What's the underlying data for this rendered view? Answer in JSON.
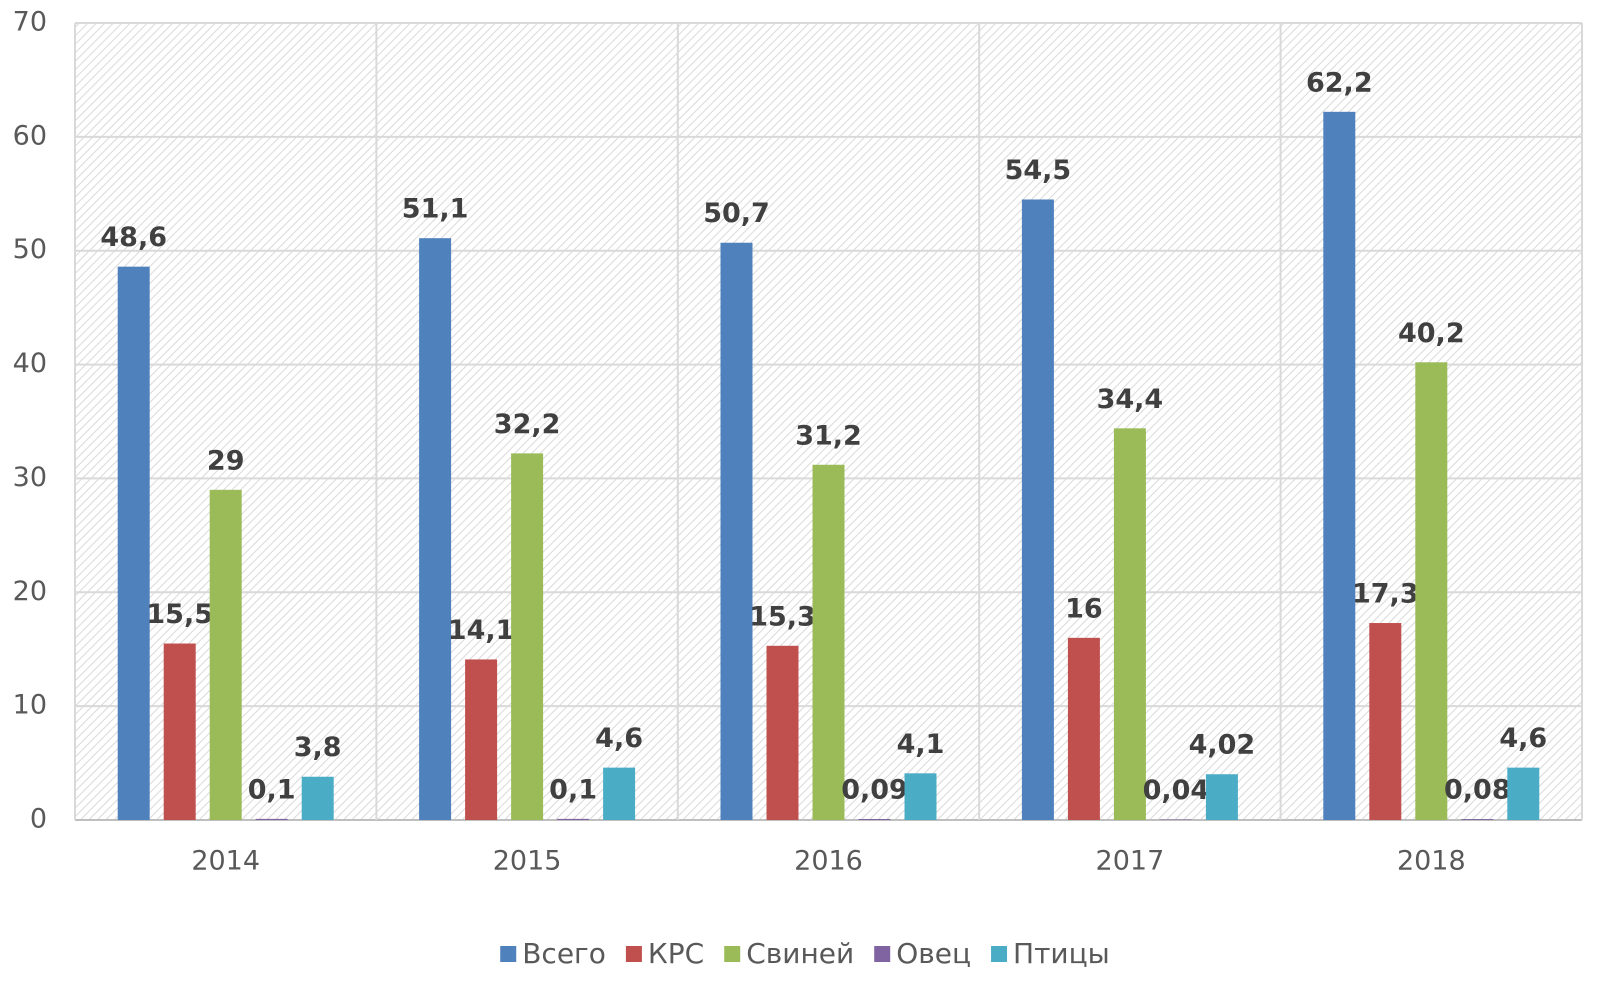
{
  "chart_data": {
    "type": "bar",
    "categories": [
      "2014",
      "2015",
      "2016",
      "2017",
      "2018"
    ],
    "series": [
      {
        "name": "Всего",
        "color": "#4f81bd",
        "values": [
          48.6,
          51.1,
          50.7,
          54.5,
          62.2
        ],
        "value_labels": [
          "48,6",
          "51,1",
          "50,7",
          "54,5",
          "62,2"
        ]
      },
      {
        "name": "КРС",
        "color": "#c0504d",
        "values": [
          15.5,
          14.1,
          15.3,
          16,
          17.3
        ],
        "value_labels": [
          "15,5",
          "14,1",
          "15,3",
          "16",
          "17,3"
        ]
      },
      {
        "name": "Свиней",
        "color": "#9bbb59",
        "values": [
          29,
          32.2,
          31.2,
          34.4,
          40.2
        ],
        "value_labels": [
          "29",
          "32,2",
          "31,2",
          "34,4",
          "40,2"
        ]
      },
      {
        "name": "Овец",
        "color": "#8064a2",
        "values": [
          0.1,
          0.1,
          0.09,
          0.04,
          0.08
        ],
        "value_labels": [
          "0,1",
          "0,1",
          "0,09",
          "0,04",
          "0,08"
        ]
      },
      {
        "name": "Птицы",
        "color": "#4bacc6",
        "values": [
          3.8,
          4.6,
          4.1,
          4.02,
          4.6
        ],
        "value_labels": [
          "3,8",
          "4,6",
          "4,1",
          "4,02",
          "4,6"
        ]
      }
    ],
    "ylim": [
      0,
      70
    ],
    "yticks": [
      0,
      10,
      20,
      30,
      40,
      50,
      60,
      70
    ],
    "grid": true,
    "legend": "bottom"
  }
}
